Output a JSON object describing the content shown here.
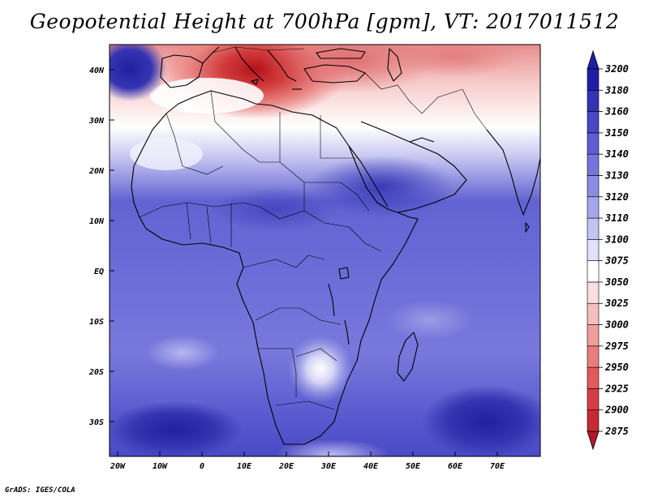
{
  "title": "Geopotential Height at 700hPa [gpm], VT: 2017011512",
  "footer": "GrADS: IGES/COLA",
  "lat_labels": [
    "40N",
    "30N",
    "20N",
    "10N",
    "EQ",
    "10S",
    "20S",
    "30S"
  ],
  "lon_labels": [
    "20W",
    "10W",
    "0",
    "10E",
    "20E",
    "30E",
    "40E",
    "50E",
    "60E",
    "70E"
  ],
  "colorbar": {
    "levels": [
      "2875",
      "2900",
      "2925",
      "2950",
      "2975",
      "3000",
      "3025",
      "3050",
      "3075",
      "3100",
      "3110",
      "3120",
      "3130",
      "3140",
      "3150",
      "3160",
      "3180",
      "3200"
    ],
    "colors": [
      "#b2182b",
      "#c52a35",
      "#d63e44",
      "#e25a5c",
      "#ea7d7c",
      "#f09e9c",
      "#f5bfbe",
      "#f9dedd",
      "#ffffff",
      "#e1e1fa",
      "#c3c3f2",
      "#a6a6ec",
      "#8c8ce4",
      "#7474dc",
      "#5d5dd2",
      "#4848c6",
      "#3333b5",
      "#1f1fa3"
    ]
  },
  "colors": {
    "deep_red": "#b8161f",
    "light_red": "#f2b0ae",
    "white": "#ffffff",
    "light_blue": "#d8d8f6",
    "mid_blue": "#6b6bd8",
    "deep_blue": "#2a2aa8"
  }
}
